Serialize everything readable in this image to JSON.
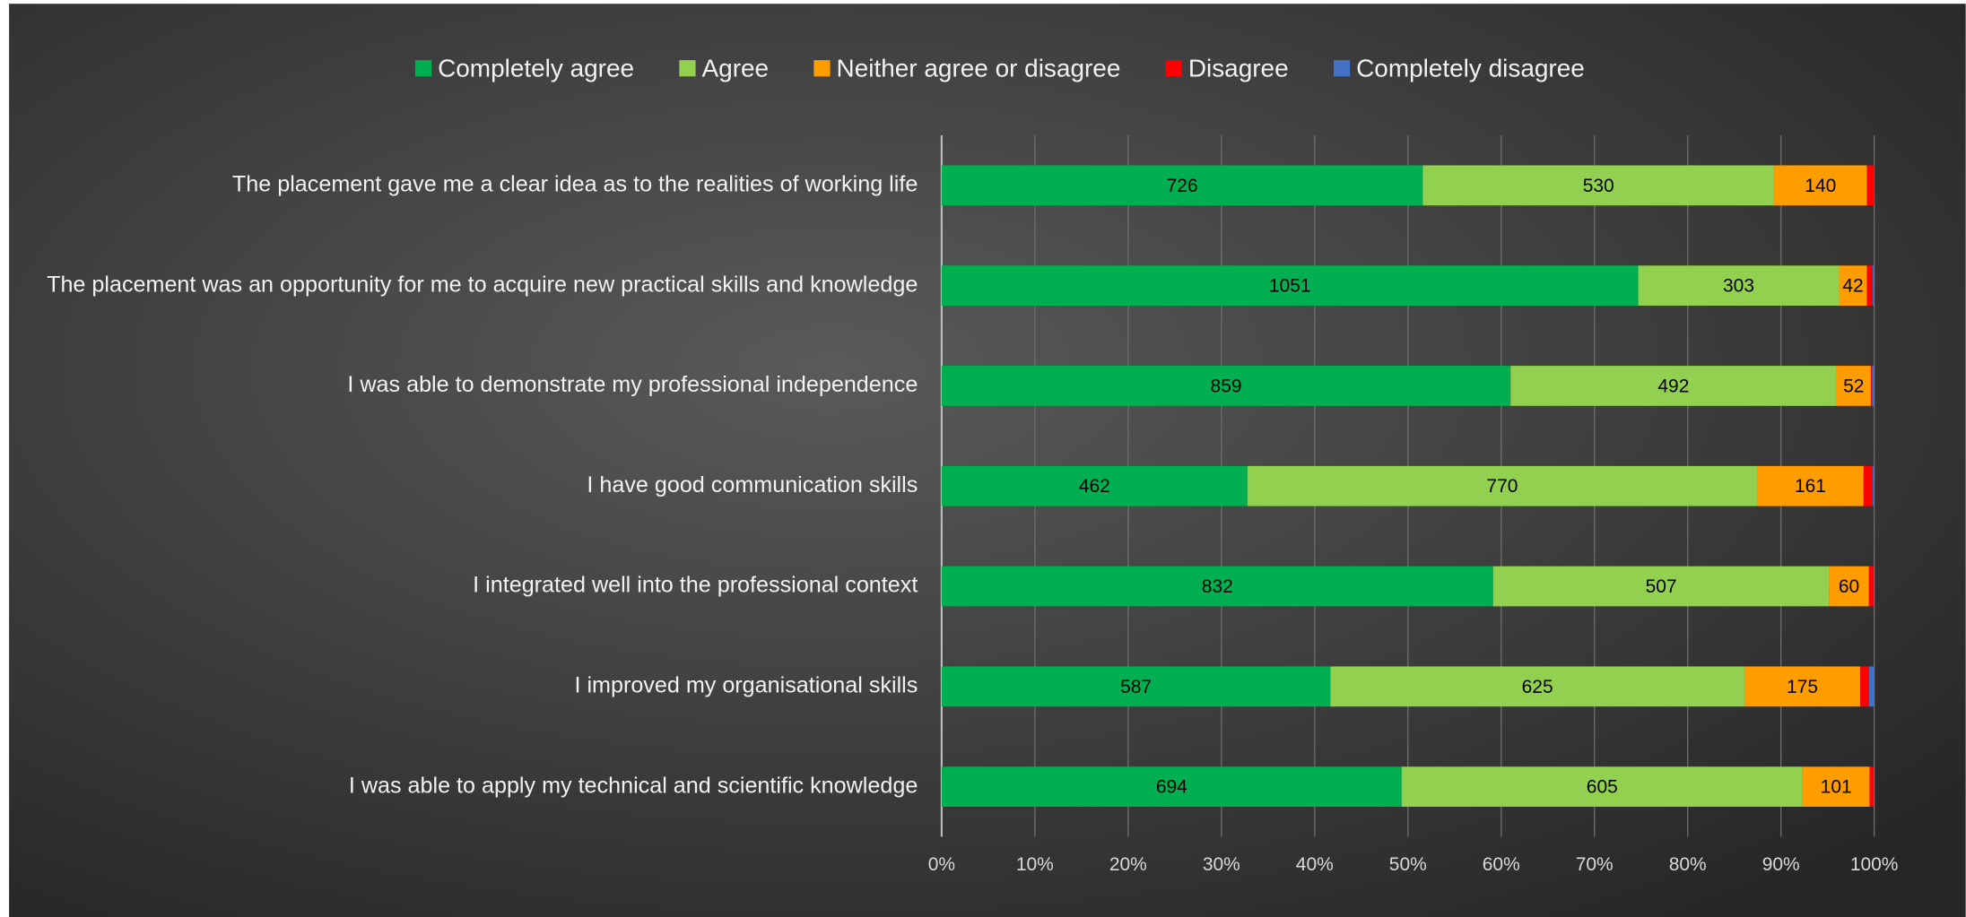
{
  "chart_data": {
    "type": "bar",
    "orientation": "horizontal",
    "stacking": "percent",
    "categories": [
      "The placement gave me a clear idea as to the realities of working life",
      "The placement was an opportunity for me to acquire new practical skills and knowledge",
      "I was able to demonstrate my professional independence",
      "I have good communication skills",
      "I integrated well into the professional context",
      "I improved my organisational skills",
      "I was able to apply my technical and scientific knowledge"
    ],
    "series": [
      {
        "name": "Completely agree",
        "color": "#00b050",
        "data_labels": true,
        "values": [
          726,
          1051,
          859,
          462,
          832,
          587,
          694
        ]
      },
      {
        "name": "Agree",
        "color": "#92d050",
        "data_labels": true,
        "values": [
          530,
          303,
          492,
          770,
          507,
          625,
          605
        ]
      },
      {
        "name": "Neither agree or disagree",
        "color": "#ff9c00",
        "data_labels": true,
        "values": [
          140,
          42,
          52,
          161,
          60,
          175,
          101
        ]
      },
      {
        "name": "Disagree",
        "color": "#ff0000",
        "data_labels": false,
        "values": [
          11,
          9,
          2,
          14,
          7,
          13,
          6
        ]
      },
      {
        "name": "Completely disagree",
        "color": "#4472c4",
        "data_labels": false,
        "values": [
          0,
          2,
          3,
          2,
          1,
          8,
          1
        ]
      }
    ],
    "xlim": [
      0,
      100
    ],
    "xticks": [
      {
        "value": 0,
        "label": "0%"
      },
      {
        "value": 10,
        "label": "10%"
      },
      {
        "value": 20,
        "label": "20%"
      },
      {
        "value": 30,
        "label": "30%"
      },
      {
        "value": 40,
        "label": "40%"
      },
      {
        "value": 50,
        "label": "50%"
      },
      {
        "value": 60,
        "label": "60%"
      },
      {
        "value": 70,
        "label": "70%"
      },
      {
        "value": 80,
        "label": "80%"
      },
      {
        "value": 90,
        "label": "90%"
      },
      {
        "value": 100,
        "label": "100%"
      }
    ],
    "grid": true,
    "legend": "top"
  }
}
